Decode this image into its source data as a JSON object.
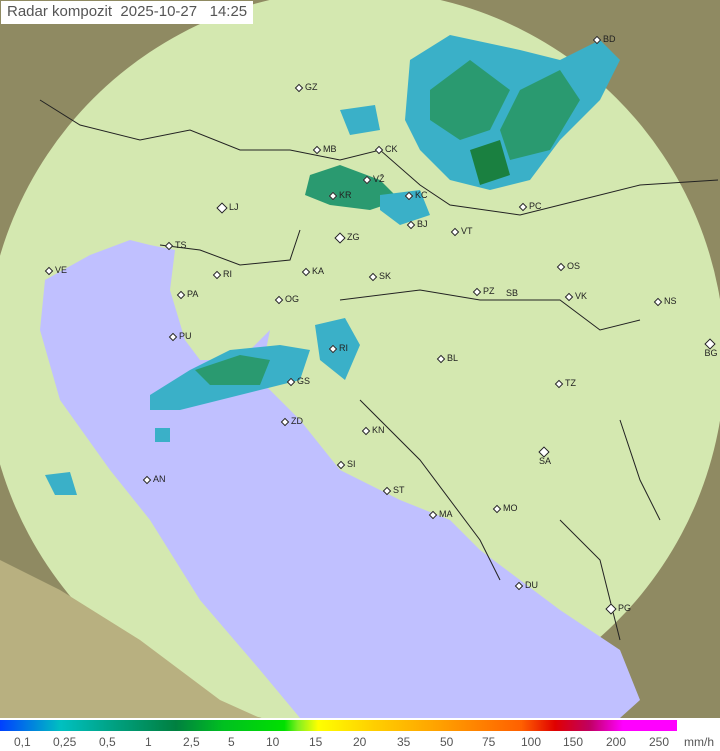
{
  "title": "Radar kompozit  2025-10-27   14:25",
  "colors": {
    "sea": "#c0c0ff",
    "radar_area": "#cde9b0",
    "outside": "#8a8a60",
    "precip_light": "#3ab0c8",
    "precip_mid": "#2a9a70",
    "precip_heavy": "#1a8040"
  },
  "cities": [
    {
      "code": "BD"
    },
    {
      "code": "GZ"
    },
    {
      "code": "MB"
    },
    {
      "code": "CK"
    },
    {
      "code": "KR"
    },
    {
      "code": "VŽ"
    },
    {
      "code": "KC"
    },
    {
      "code": "BJ"
    },
    {
      "code": "PC"
    },
    {
      "code": "LJ"
    },
    {
      "code": "ZG"
    },
    {
      "code": "VT"
    },
    {
      "code": "TS"
    },
    {
      "code": "VE"
    },
    {
      "code": "RI"
    },
    {
      "code": "KA"
    },
    {
      "code": "SK"
    },
    {
      "code": "OS"
    },
    {
      "code": "PA"
    },
    {
      "code": "OG"
    },
    {
      "code": "PZ"
    },
    {
      "code": "SB"
    },
    {
      "code": "VK"
    },
    {
      "code": "NS"
    },
    {
      "code": "PU"
    },
    {
      "code": "BL"
    },
    {
      "code": "BG"
    },
    {
      "code": "GS"
    },
    {
      "code": "TZ"
    },
    {
      "code": "ZD"
    },
    {
      "code": "KN"
    },
    {
      "code": "SA"
    },
    {
      "code": "SI"
    },
    {
      "code": "AN"
    },
    {
      "code": "ST"
    },
    {
      "code": "MA"
    },
    {
      "code": "MO"
    },
    {
      "code": "DU"
    },
    {
      "code": "PG"
    },
    {
      "code": "RI"
    }
  ],
  "legend": {
    "labels": [
      "0,1",
      "0,25",
      "0,5",
      "1",
      "2,5",
      "5",
      "10",
      "15",
      "20",
      "35",
      "50",
      "75",
      "100",
      "150",
      "200",
      "250"
    ],
    "unit": "mm/h"
  }
}
